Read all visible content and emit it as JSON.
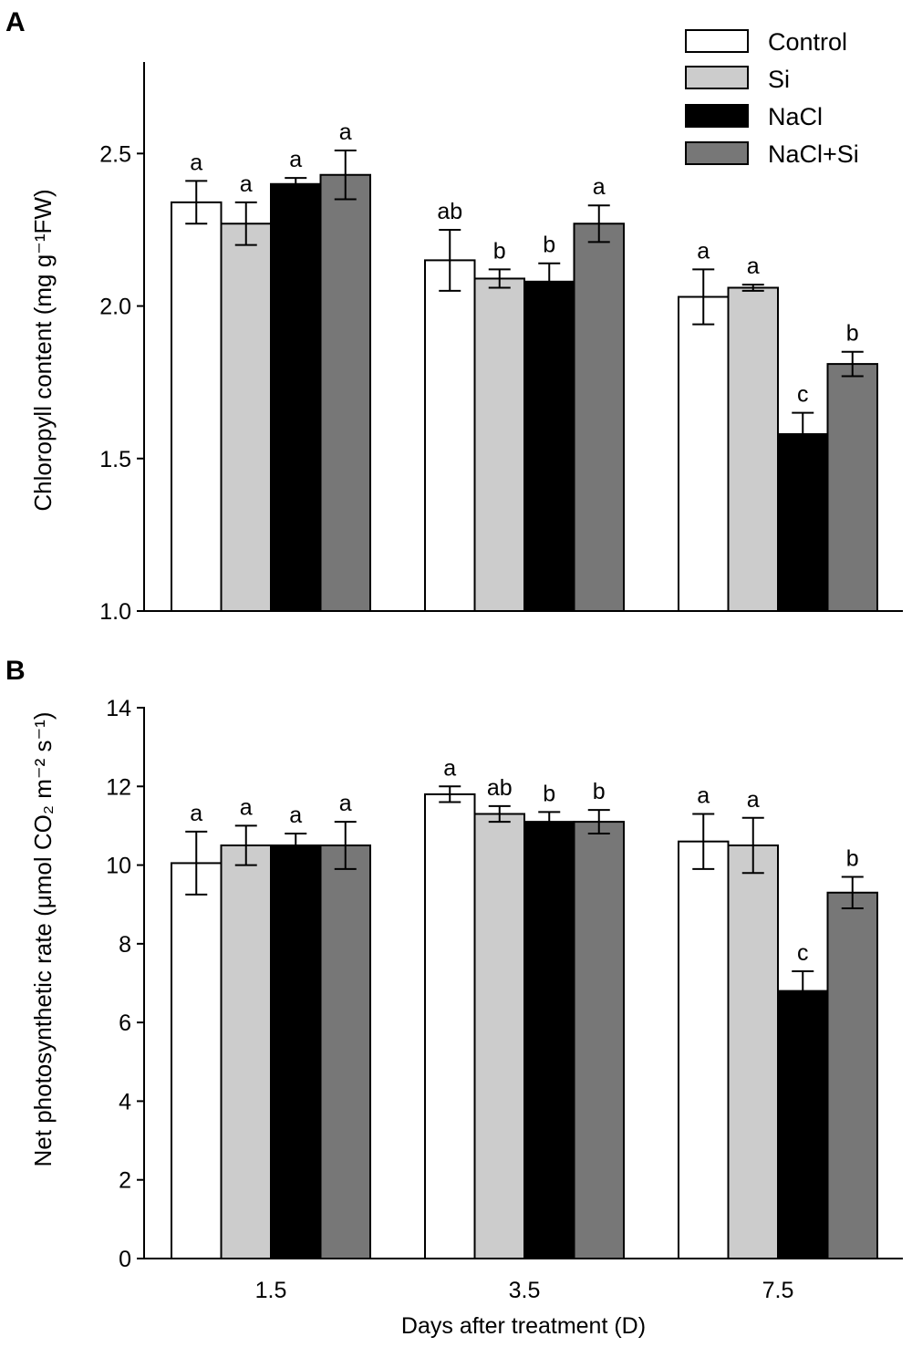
{
  "chart_data": [
    {
      "panel": "A",
      "type": "bar",
      "categories": [
        "1.5",
        "3.5",
        "7.5"
      ],
      "ylabel": "Chloropyll  content (mg g⁻¹FW)",
      "ylim": [
        1.0,
        2.8
      ],
      "yticks": [
        "1.0",
        "1.5",
        "2.0",
        "2.5"
      ],
      "series": [
        {
          "name": "Control",
          "color": "#ffffff",
          "values": [
            2.34,
            2.15,
            2.03
          ],
          "errors": [
            0.07,
            0.1,
            0.09
          ],
          "letters": [
            "a",
            "ab",
            "a"
          ]
        },
        {
          "name": "Si",
          "color": "#cccccc",
          "values": [
            2.27,
            2.09,
            2.06
          ],
          "errors": [
            0.07,
            0.03,
            0.01
          ],
          "letters": [
            "a",
            "b",
            "a"
          ]
        },
        {
          "name": "NaCl",
          "color": "#000000",
          "values": [
            2.4,
            2.08,
            1.58
          ],
          "errors": [
            0.02,
            0.06,
            0.07
          ],
          "letters": [
            "a",
            "b",
            "c"
          ]
        },
        {
          "name": "NaCl+Si",
          "color": "#777777",
          "values": [
            2.43,
            2.27,
            1.81
          ],
          "errors": [
            0.08,
            0.06,
            0.04
          ],
          "letters": [
            "a",
            "a",
            "b"
          ]
        }
      ]
    },
    {
      "panel": "B",
      "type": "bar",
      "categories": [
        "1.5",
        "3.5",
        "7.5"
      ],
      "xlabel": "Days after treatment (D)",
      "ylabel": "Net photosynthetic rate (μmol CO₂ m⁻² s⁻¹)",
      "ylim": [
        0,
        14
      ],
      "yticks": [
        "0",
        "2",
        "4",
        "6",
        "8",
        "10",
        "12",
        "14"
      ],
      "series": [
        {
          "name": "Control",
          "color": "#ffffff",
          "values": [
            10.05,
            11.8,
            10.6
          ],
          "errors": [
            0.8,
            0.2,
            0.7
          ],
          "letters": [
            "a",
            "a",
            "a"
          ]
        },
        {
          "name": "Si",
          "color": "#cccccc",
          "values": [
            10.5,
            11.3,
            10.5
          ],
          "errors": [
            0.5,
            0.2,
            0.7
          ],
          "letters": [
            "a",
            "ab",
            "a"
          ]
        },
        {
          "name": "NaCl",
          "color": "#000000",
          "values": [
            10.5,
            11.1,
            6.8
          ],
          "errors": [
            0.3,
            0.25,
            0.5
          ],
          "letters": [
            "a",
            "b",
            "c"
          ]
        },
        {
          "name": "NaCl+Si",
          "color": "#777777",
          "values": [
            10.5,
            11.1,
            9.3
          ],
          "errors": [
            0.6,
            0.3,
            0.4
          ],
          "letters": [
            "a",
            "b",
            "b"
          ]
        }
      ]
    }
  ],
  "legend": [
    "Control",
    "Si",
    "NaCl",
    "NaCl+Si"
  ]
}
